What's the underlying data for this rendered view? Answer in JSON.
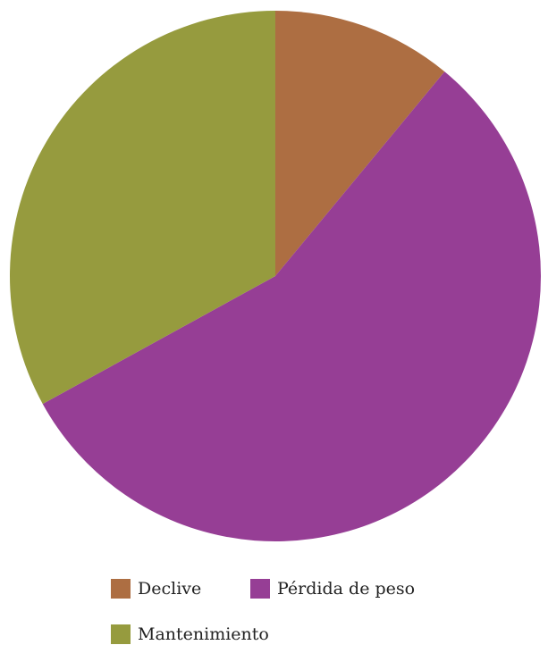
{
  "chart_data": {
    "type": "pie",
    "title": "",
    "slices": [
      {
        "label": "Declive",
        "value": 11,
        "color": "#AD6E42"
      },
      {
        "label": "Pérdida de peso",
        "value": 56,
        "color": "#963E95"
      },
      {
        "label": "Mantenimiento",
        "value": 33,
        "color": "#969B3E"
      }
    ],
    "start_angle_deg": 0,
    "direction": "clockwise",
    "legend": {
      "placement": "bottom",
      "entries": [
        "Declive",
        "Pérdida de peso",
        "Mantenimiento"
      ]
    }
  }
}
